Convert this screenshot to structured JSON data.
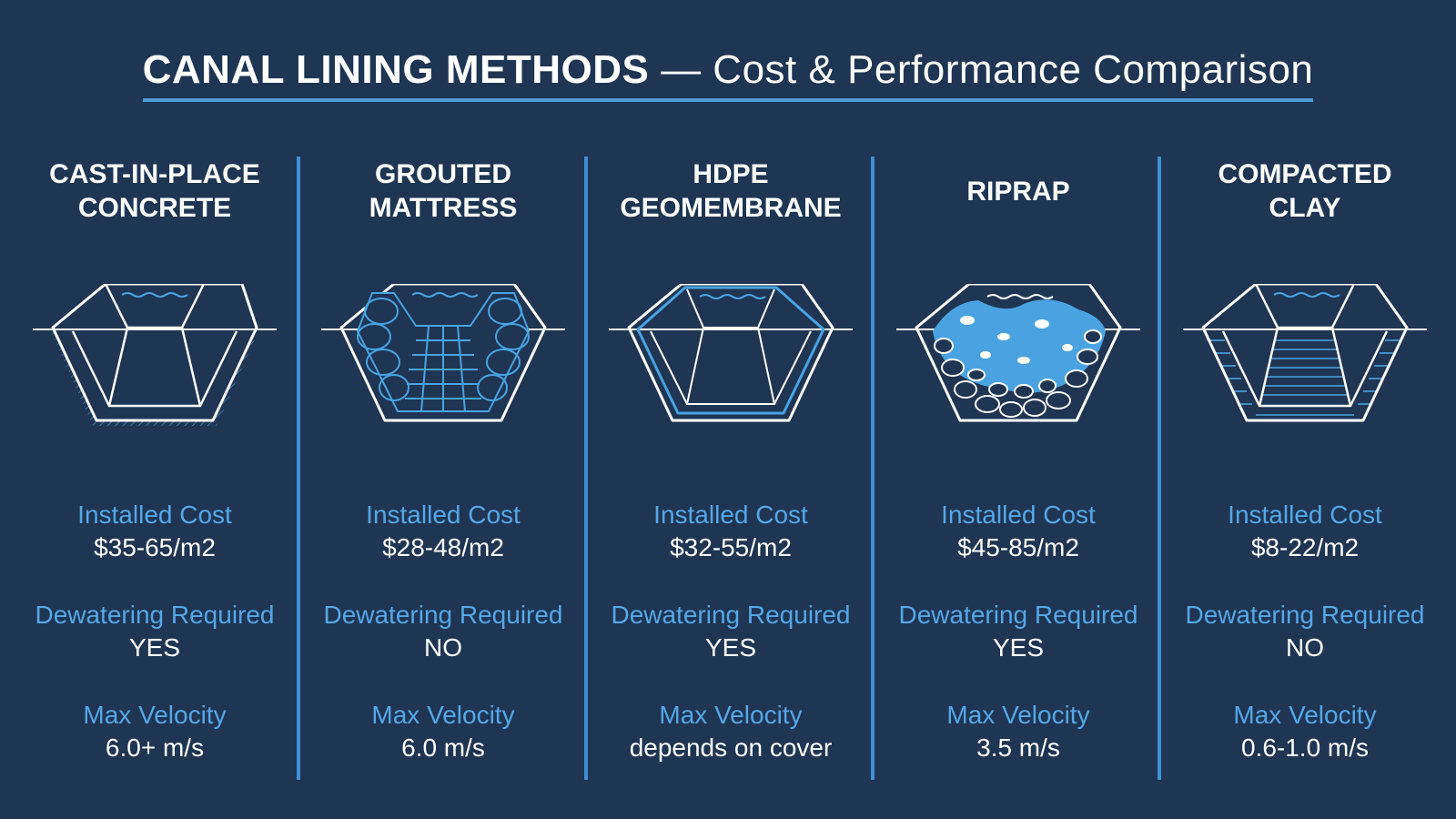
{
  "title": {
    "main": "CANAL LINING METHODS",
    "dash": "—",
    "sub": "Cost & Performance Comparison"
  },
  "colors": {
    "background": "#1e3553",
    "accent": "#3f8fd0",
    "label": "#56a7e4",
    "text": "#ffffff",
    "water": "#4aa3e0"
  },
  "methods": [
    {
      "name": "CAST-IN-PLACE\nCONCRETE",
      "icon": "concrete-channel-icon",
      "cost_label": "Installed Cost",
      "cost": "$35-65/m2",
      "dewatering_label": "Dewatering Required",
      "dewatering": "YES",
      "velocity_label": "Max Velocity",
      "velocity": "6.0+ m/s"
    },
    {
      "name": "GROUTED\nMATTRESS",
      "icon": "grouted-mattress-channel-icon",
      "cost_label": "Installed Cost",
      "cost": "$28-48/m2",
      "dewatering_label": "Dewatering Required",
      "dewatering": "NO",
      "velocity_label": "Max Velocity",
      "velocity": "6.0 m/s"
    },
    {
      "name": "HDPE\nGEOMEMBRANE",
      "icon": "geomembrane-channel-icon",
      "cost_label": "Installed Cost",
      "cost": "$32-55/m2",
      "dewatering_label": "Dewatering Required",
      "dewatering": "YES",
      "velocity_label": "Max Velocity",
      "velocity": "depends on cover"
    },
    {
      "name": "RIPRAP",
      "icon": "riprap-channel-icon",
      "cost_label": "Installed Cost",
      "cost": "$45-85/m2",
      "dewatering_label": "Dewatering Required",
      "dewatering": "YES",
      "velocity_label": "Max Velocity",
      "velocity": "3.5 m/s"
    },
    {
      "name": "COMPACTED\nCLAY",
      "icon": "compacted-clay-channel-icon",
      "cost_label": "Installed Cost",
      "cost": "$8-22/m2",
      "dewatering_label": "Dewatering Required",
      "dewatering": "NO",
      "velocity_label": "Max Velocity",
      "velocity": "0.6-1.0 m/s"
    }
  ]
}
